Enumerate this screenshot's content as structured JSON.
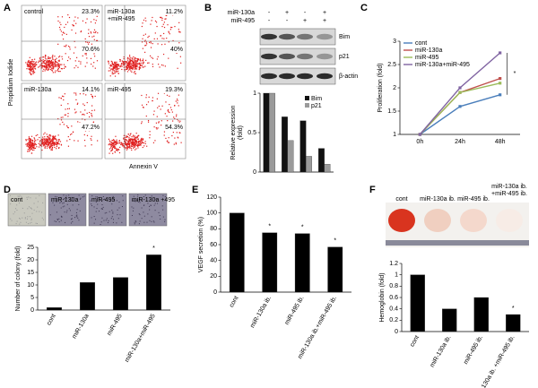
{
  "panel_labels": [
    "A",
    "B",
    "C",
    "D",
    "E",
    "F"
  ],
  "flow": {
    "y_label": "Propidium Iodide",
    "x_label": "Annexin V",
    "plots": [
      {
        "name": [
          "control"
        ],
        "upper_right": "23.3%",
        "lower_right": "70.6%"
      },
      {
        "name": [
          "miR-130a",
          "+miR-495"
        ],
        "upper_right": "11.2%",
        "lower_right": "40%"
      },
      {
        "name": [
          "miR-130a"
        ],
        "upper_right": "14.1%",
        "lower_right": "47.2%"
      },
      {
        "name": [
          "miR-495"
        ],
        "upper_right": "19.3%",
        "lower_right": "54.3%"
      }
    ]
  },
  "blot": {
    "conditions": [
      {
        "name": "miR-130a",
        "signs": [
          "-",
          "+",
          "-",
          "+"
        ]
      },
      {
        "name": "miR-495",
        "signs": [
          "-",
          "-",
          "+",
          "+"
        ]
      }
    ],
    "bands": [
      "Bim",
      "p21",
      "β-actin"
    ]
  },
  "colony_images": [
    "cont",
    "miR-130a",
    "miR-495",
    "miR-130a +495"
  ],
  "plug_images": [
    "cont",
    "miR-130a ib.",
    "miR-495 ib.",
    [
      "miR-130a ib.",
      "+miR-495 ib."
    ]
  ],
  "chart_data": [
    {
      "type": "bar",
      "y_label": [
        "Relative expression",
        "(fold)"
      ],
      "categories": [
        null,
        null,
        null,
        null
      ],
      "series": [
        {
          "name": "Bim",
          "color": "#111111",
          "values": [
            1,
            0.7,
            0.65,
            0.3
          ]
        },
        {
          "name": "p21",
          "color": "#9a9a9a",
          "values": [
            1,
            0.4,
            0.2,
            0.1
          ]
        }
      ],
      "ylim": [
        0,
        1
      ],
      "yticks": [
        0,
        0.5,
        1
      ]
    },
    {
      "type": "line",
      "y_label": [
        "Proliferation (fold)"
      ],
      "categories": [
        "0h",
        "24h",
        "48h"
      ],
      "series": [
        {
          "name": "cont",
          "color": "#4a7ebb",
          "values": [
            1,
            1.6,
            1.85
          ]
        },
        {
          "name": "miR-130a",
          "color": "#c0504d",
          "values": [
            1,
            1.9,
            2.2
          ]
        },
        {
          "name": "miR-495",
          "color": "#9bbb59",
          "values": [
            1,
            1.9,
            2.1
          ]
        },
        {
          "name": "miR-130a+miR-495",
          "color": "#8064a2",
          "values": [
            1,
            2.0,
            2.75
          ]
        }
      ],
      "ylim": [
        1,
        3
      ],
      "yticks": [
        1,
        1.5,
        2,
        2.5,
        3
      ],
      "annotations": [
        "*"
      ]
    },
    {
      "type": "bar",
      "y_label": [
        "Number of colony (fold)"
      ],
      "categories": [
        "cont",
        "miR-130a",
        "miR-495",
        "miR-130a+miR-495"
      ],
      "values": [
        1,
        11,
        13,
        22
      ],
      "color": "#000000",
      "ylim": [
        0,
        25
      ],
      "yticks": [
        0,
        5,
        10,
        15,
        20,
        25
      ],
      "annotations": [
        "*"
      ]
    },
    {
      "type": "bar",
      "y_label": [
        "VEGF secretion (%)"
      ],
      "categories": [
        "cont",
        "miR-130a ib.",
        "miR-495 ib.",
        "miR-130a ib.+miR-495 ib."
      ],
      "values": [
        100,
        75,
        74,
        57
      ],
      "color": "#000000",
      "ylim": [
        0,
        120
      ],
      "yticks": [
        0,
        20,
        40,
        60,
        80,
        100,
        120
      ],
      "annotations": [
        "*",
        "*",
        "*"
      ]
    },
    {
      "type": "bar",
      "y_label": [
        "Hemoglobin (fold)"
      ],
      "categories": [
        "cont",
        "miR-130a ib.",
        "miR-495 ib.",
        "miR-130a ib. +miR-495 ib."
      ],
      "values": [
        1,
        0.4,
        0.6,
        0.3
      ],
      "color": "#000000",
      "ylim": [
        0,
        1.2
      ],
      "yticks": [
        0,
        0.2,
        0.4,
        0.6,
        0.8,
        1,
        1.2
      ],
      "annotations": [
        "*"
      ]
    }
  ]
}
